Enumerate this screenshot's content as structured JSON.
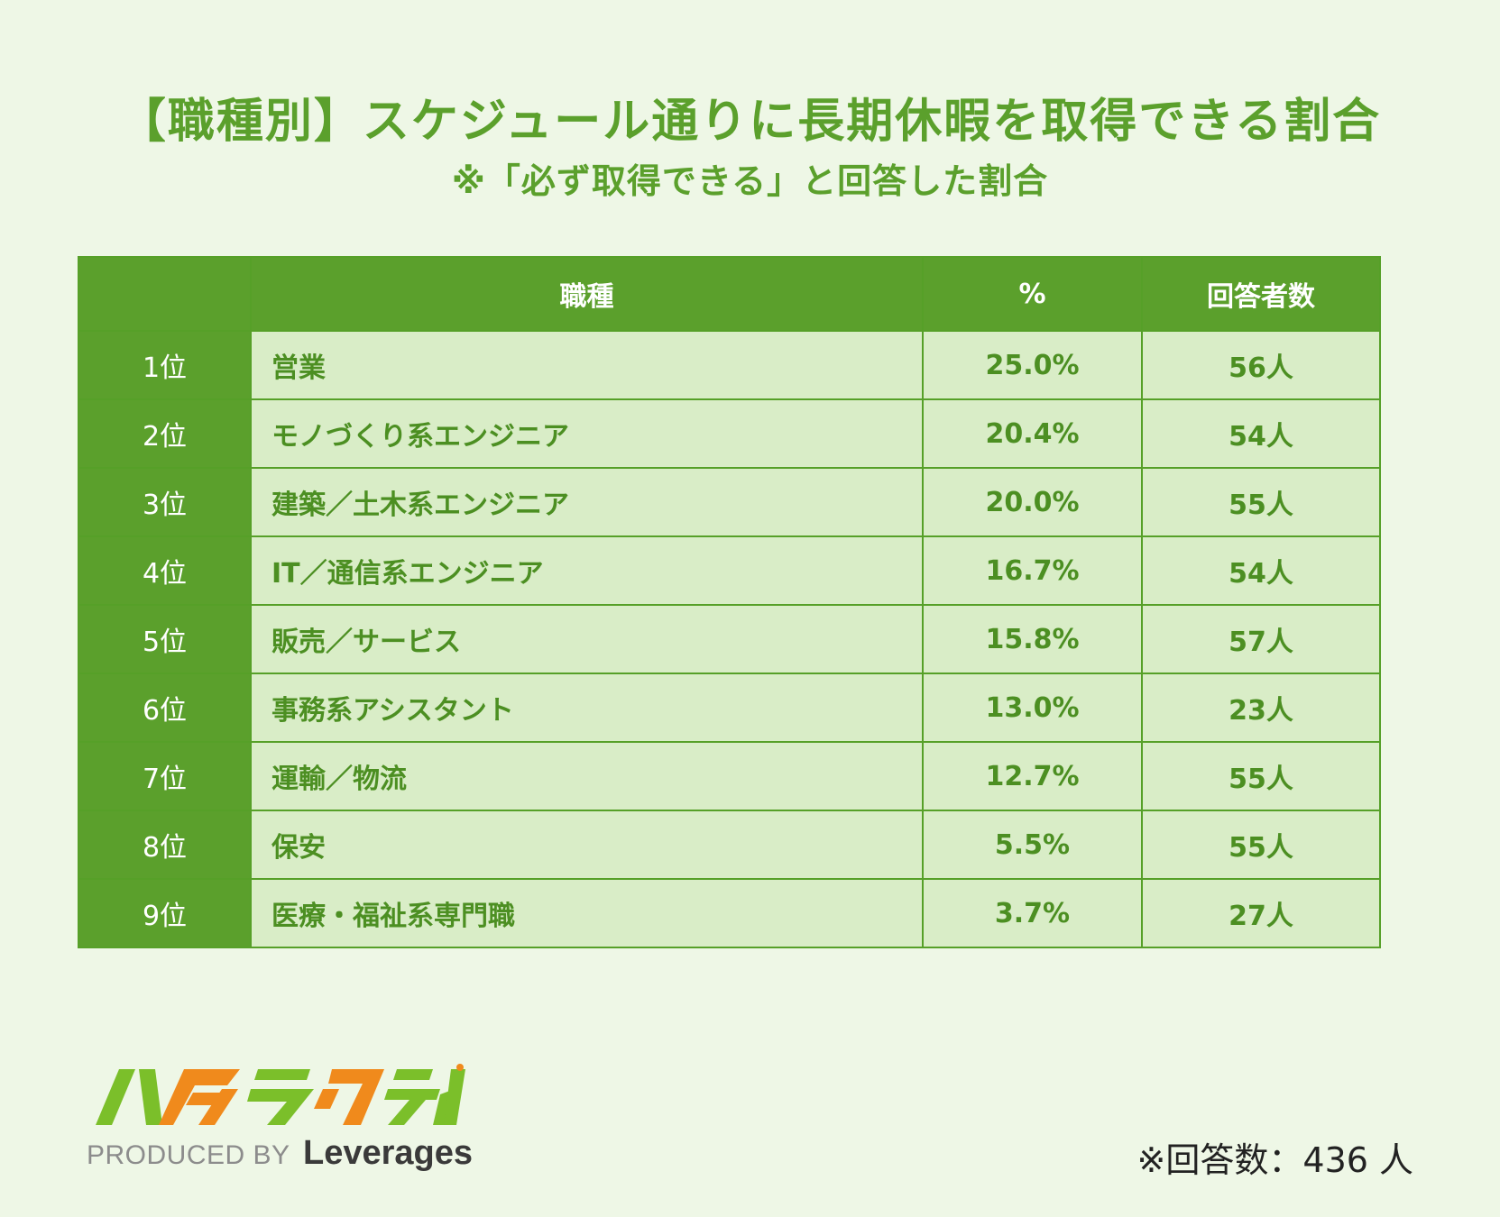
{
  "title": "【職種別】スケジュール通りに長期休暇を取得できる割合",
  "subtitle": "※「必ず取得できる」と回答した割合",
  "table": {
    "headers": [
      "",
      "職種",
      "%",
      "回答者数"
    ]
  },
  "chart_data": {
    "type": "table",
    "columns": [
      "",
      "職種",
      "%",
      "回答者数"
    ],
    "rows": [
      {
        "rank": "1位",
        "job": "営業",
        "pct": "25.0%",
        "respondents": "56人"
      },
      {
        "rank": "2位",
        "job": "モノづくり系エンジニア",
        "pct": "20.4%",
        "respondents": "54人"
      },
      {
        "rank": "3位",
        "job": "建築／土木系エンジニア",
        "pct": "20.0%",
        "respondents": "55人"
      },
      {
        "rank": "4位",
        "job": "IT／通信系エンジニア",
        "pct": "16.7%",
        "respondents": "54人"
      },
      {
        "rank": "5位",
        "job": "販売／サービス",
        "pct": "15.8%",
        "respondents": "57人"
      },
      {
        "rank": "6位",
        "job": "事務系アシスタント",
        "pct": "13.0%",
        "respondents": "23人"
      },
      {
        "rank": "7位",
        "job": "運輸／物流",
        "pct": "12.7%",
        "respondents": "55人"
      },
      {
        "rank": "8位",
        "job": "保安",
        "pct": "5.5%",
        "respondents": "55人"
      },
      {
        "rank": "9位",
        "job": "医療・福祉系専門職",
        "pct": "3.7%",
        "respondents": "27人"
      }
    ]
  },
  "logo": {
    "text": "ハタラクティブ",
    "produced_by": "PRODUCED BY",
    "company": "Leverages",
    "colors": {
      "green": "#7bbf2a",
      "orange": "#f08a1c"
    }
  },
  "footnote": "※回答数：436 人",
  "colors": {
    "background": "#eef7e6",
    "accent": "#5ba02c",
    "cell_fill": "#d9edc7",
    "text": "#4c8f22"
  }
}
